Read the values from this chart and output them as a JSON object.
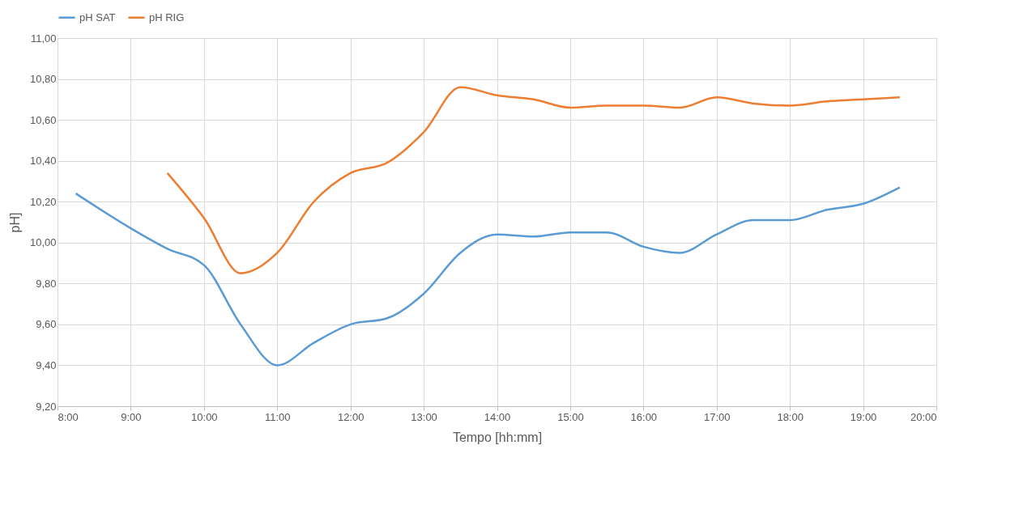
{
  "chart_data": {
    "type": "line",
    "xlabel": "Tempo [hh:mm]",
    "ylabel": "pH]",
    "legend": "top",
    "grid": true,
    "marker": "none",
    "line_style": "solid",
    "xlim": [
      8,
      20
    ],
    "ylim": [
      9.2,
      11
    ],
    "xticks": [
      {
        "value": 8,
        "label": "8:00"
      },
      {
        "value": 9,
        "label": "9:00"
      },
      {
        "value": 10,
        "label": "10:00"
      },
      {
        "value": 11,
        "label": "11:00"
      },
      {
        "value": 12,
        "label": "12:00"
      },
      {
        "value": 13,
        "label": "13:00"
      },
      {
        "value": 14,
        "label": "14:00"
      },
      {
        "value": 15,
        "label": "15:00"
      },
      {
        "value": 16,
        "label": "16:00"
      },
      {
        "value": 17,
        "label": "17:00"
      },
      {
        "value": 18,
        "label": "18:00"
      },
      {
        "value": 19,
        "label": "19:00"
      },
      {
        "value": 20,
        "label": "20:00"
      }
    ],
    "yticks": [
      {
        "value": 9.2,
        "label": "9,20"
      },
      {
        "value": 9.4,
        "label": "9,40"
      },
      {
        "value": 9.6,
        "label": "9,60"
      },
      {
        "value": 9.8,
        "label": "9,80"
      },
      {
        "value": 10,
        "label": "10,00"
      },
      {
        "value": 10.2,
        "label": "10,20"
      },
      {
        "value": 10.4,
        "label": "10,40"
      },
      {
        "value": 10.6,
        "label": "10,60"
      },
      {
        "value": 10.8,
        "label": "10,80"
      },
      {
        "value": 11,
        "label": "11,00"
      }
    ],
    "series": [
      {
        "name": "pH SAT",
        "color": "#5b9bd5",
        "x": [
          8.25,
          9,
          9.5,
          10,
          10.5,
          11,
          11.5,
          12,
          12.5,
          13,
          13.5,
          14,
          14.5,
          15,
          15.5,
          16,
          16.5,
          17,
          17.5,
          18,
          18.5,
          19,
          19.5
        ],
        "values": [
          10.24,
          10.07,
          9.97,
          9.89,
          9.6,
          9.4,
          9.51,
          9.6,
          9.63,
          9.75,
          9.95,
          10.04,
          10.03,
          10.05,
          10.05,
          9.98,
          9.95,
          10.04,
          10.11,
          10.11,
          10.16,
          10.19,
          10.27
        ]
      },
      {
        "name": "pH RIG",
        "color": "#ed7d31",
        "x": [
          9.5,
          10,
          10.5,
          11,
          11.5,
          12,
          12.5,
          13,
          13.5,
          14,
          14.5,
          15,
          15.5,
          16,
          16.5,
          17,
          17.5,
          18,
          18.5,
          19,
          19.5
        ],
        "values": [
          10.34,
          10.12,
          9.85,
          9.95,
          10.2,
          10.34,
          10.39,
          10.54,
          10.76,
          10.72,
          10.7,
          10.66,
          10.67,
          10.67,
          10.66,
          10.71,
          10.68,
          10.67,
          10.69,
          10.7,
          10.71
        ]
      }
    ]
  }
}
